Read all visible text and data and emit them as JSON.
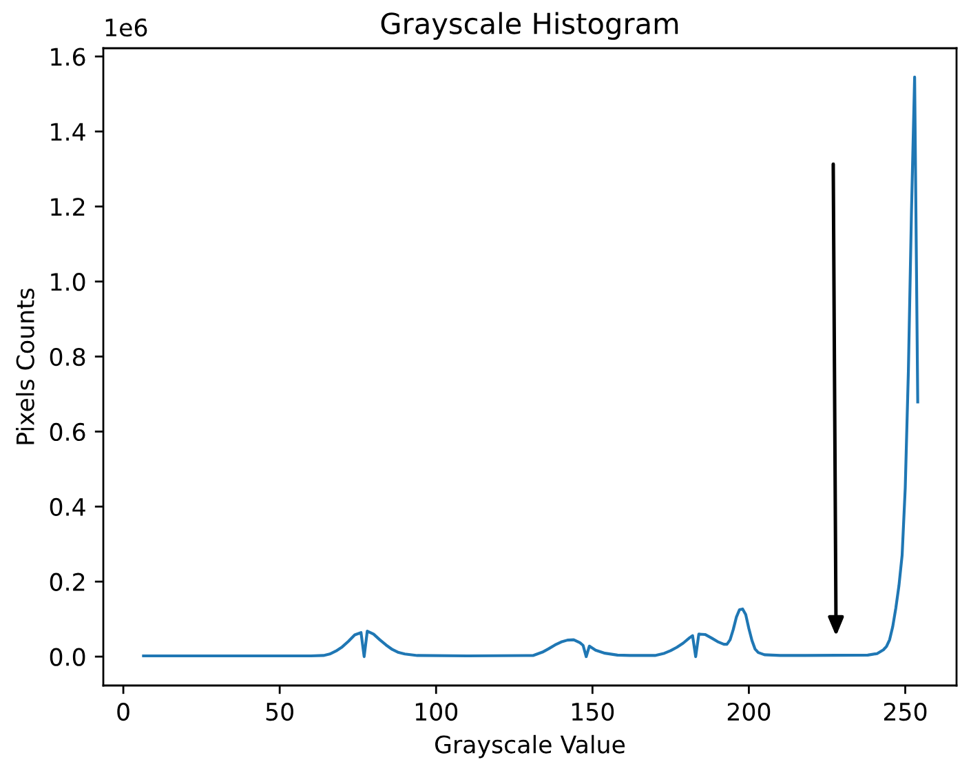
{
  "chart_data": {
    "type": "line",
    "title": "Grayscale Histogram",
    "xlabel": "Grayscale Value",
    "ylabel": "Pixels Counts",
    "annotations": [
      "1e6"
    ],
    "x": [
      6,
      30,
      50,
      60,
      64,
      66,
      68,
      70,
      72,
      74,
      76,
      77,
      78,
      80,
      82,
      84,
      86,
      88,
      90,
      94,
      110,
      131,
      134,
      136,
      138,
      140,
      142,
      144,
      146,
      147,
      148,
      149,
      151,
      154,
      158,
      162,
      170,
      173,
      175,
      177,
      179,
      181,
      182,
      183,
      184,
      186,
      188,
      190,
      192,
      193,
      194,
      195,
      196,
      197,
      198,
      199,
      200,
      201,
      202,
      203,
      205,
      210,
      218,
      238,
      241,
      243,
      244,
      245,
      246,
      247,
      248,
      249,
      250,
      251,
      252,
      253,
      254
    ],
    "values": [
      0.002,
      0.002,
      0.002,
      0.002,
      0.003,
      0.007,
      0.015,
      0.026,
      0.041,
      0.058,
      0.064,
      0,
      0.068,
      0.06,
      0.045,
      0.031,
      0.019,
      0.011,
      0.007,
      0.003,
      0.002,
      0.003,
      0.012,
      0.021,
      0.031,
      0.039,
      0.044,
      0.045,
      0.037,
      0.03,
      0,
      0.028,
      0.017,
      0.009,
      0.004,
      0.003,
      0.003,
      0.009,
      0.016,
      0.025,
      0.036,
      0.05,
      0.056,
      0,
      0.06,
      0.059,
      0.05,
      0.04,
      0.033,
      0.033,
      0.045,
      0.072,
      0.105,
      0.125,
      0.127,
      0.112,
      0.075,
      0.043,
      0.02,
      0.011,
      0.005,
      0.003,
      0.003,
      0.004,
      0.008,
      0.018,
      0.027,
      0.045,
      0.08,
      0.13,
      0.19,
      0.27,
      0.45,
      0.76,
      1.19,
      1.545,
      0.675
    ],
    "color": "#1f77b4",
    "xlim": [
      -6.4,
      266.4
    ],
    "ylim": [
      -0.077,
      1.622
    ],
    "xticks": [
      0,
      50,
      100,
      150,
      200,
      250
    ],
    "yticks": [
      {
        "value": 0,
        "label": "0.0"
      },
      0.2,
      0.4,
      0.6,
      0.8,
      {
        "value": 1,
        "label": "1.0"
      },
      1.2,
      1.4,
      1.6
    ],
    "grid": false,
    "marker": "none",
    "line_style": "solid"
  }
}
